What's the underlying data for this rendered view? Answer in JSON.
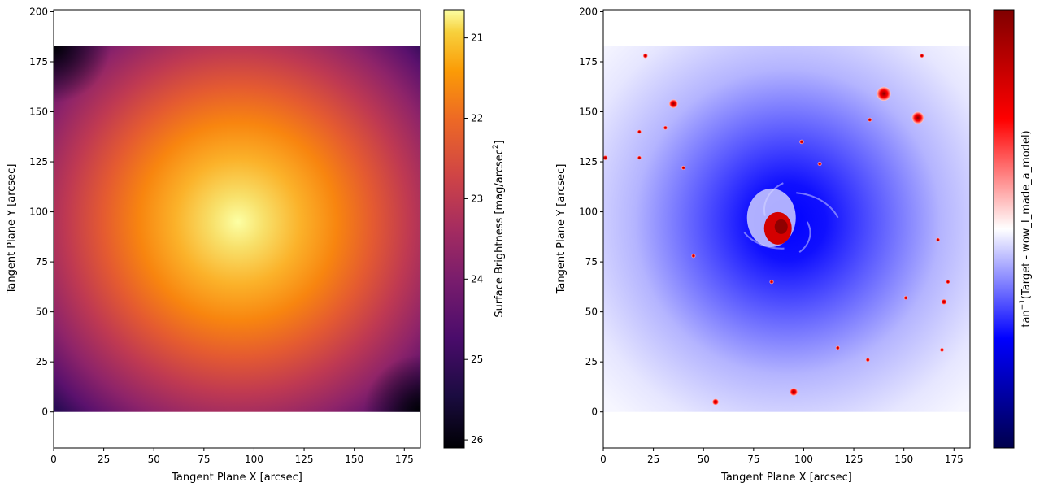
{
  "chart_data": [
    {
      "type": "heatmap",
      "xlabel": "Tangent Plane X [arcsec]",
      "ylabel": "Tangent Plane Y [arcsec]",
      "xlim": [
        0,
        183
      ],
      "ylim": [
        -18,
        201
      ],
      "image_extent": {
        "x": [
          0,
          183
        ],
        "y": [
          0,
          183
        ]
      },
      "xticks": [
        0,
        25,
        50,
        75,
        100,
        125,
        150,
        175
      ],
      "yticks": [
        0,
        25,
        50,
        75,
        100,
        125,
        150,
        175,
        200
      ],
      "colormap": "inferno_r",
      "colorbar": {
        "label": "Surface Brightness [mag/arcsec",
        "label_sup": "2",
        "label_end": "]",
        "range": [
          26.1,
          20.65
        ],
        "ticks": [
          21,
          22,
          23,
          24,
          25,
          26
        ]
      },
      "model_center": [
        92,
        95
      ],
      "center_value": 20.7,
      "corner_value": 26.1
    },
    {
      "type": "heatmap",
      "xlabel": "Tangent Plane X [arcsec]",
      "ylabel": "Tangent Plane Y [arcsec]",
      "xlim": [
        0,
        183
      ],
      "ylim": [
        -18,
        201
      ],
      "image_extent": {
        "x": [
          0,
          183
        ],
        "y": [
          0,
          183
        ]
      },
      "xticks": [
        0,
        25,
        50,
        75,
        100,
        125,
        150,
        175
      ],
      "yticks": [
        0,
        25,
        50,
        75,
        100,
        125,
        150,
        175,
        200
      ],
      "colormap": "seismic",
      "colorbar": {
        "label": "tan",
        "label_sup": "−1",
        "label_end": "(Target - wow_I_made_a_model)",
        "ticks": []
      },
      "core_center": [
        92,
        95
      ],
      "sources": [
        [
          21,
          178,
          1.2
        ],
        [
          159,
          178,
          0.9
        ],
        [
          140,
          159,
          3.5
        ],
        [
          157,
          147,
          3.0
        ],
        [
          35,
          154,
          2.2
        ],
        [
          99,
          135,
          1.1
        ],
        [
          108,
          124,
          1.0
        ],
        [
          40,
          122,
          1.0
        ],
        [
          18,
          140,
          1.0
        ],
        [
          18,
          127,
          1.0
        ],
        [
          1,
          127,
          1.2
        ],
        [
          133,
          146,
          0.9
        ],
        [
          84,
          65,
          1.0
        ],
        [
          117,
          32,
          1.0
        ],
        [
          95,
          10,
          2.0
        ],
        [
          56,
          5,
          1.6
        ],
        [
          167,
          86,
          1.0
        ],
        [
          170,
          55,
          1.4
        ],
        [
          172,
          65,
          0.8
        ],
        [
          151,
          57,
          0.8
        ],
        [
          169,
          31,
          1.0
        ],
        [
          45,
          78,
          1.0
        ],
        [
          132,
          26,
          0.9
        ],
        [
          31,
          142,
          0.8
        ]
      ]
    }
  ]
}
